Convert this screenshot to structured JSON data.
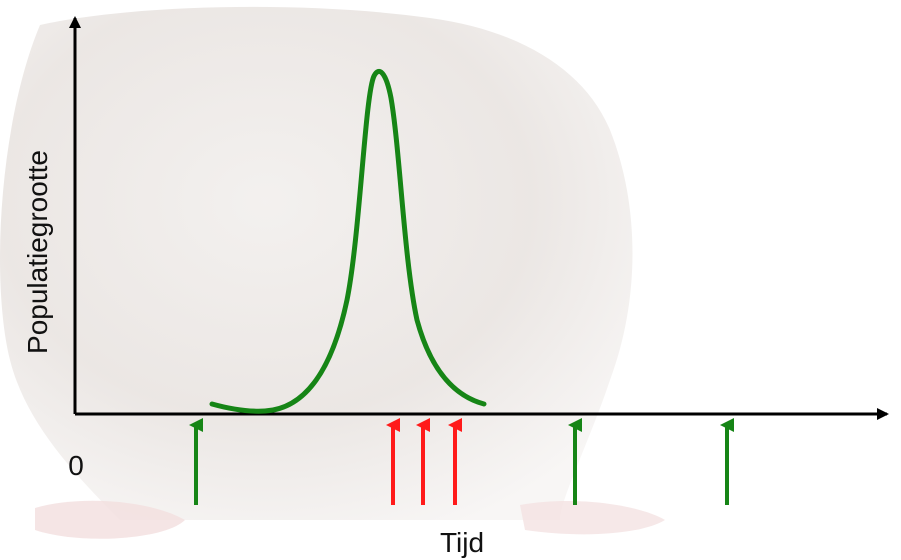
{
  "diagram": {
    "y_label": "Populatiegrootte",
    "x_label": "Tijd",
    "origin_label": "0"
  },
  "colors": {
    "axis": "#000000",
    "curve": "#168516",
    "arrow_green": "#168516",
    "arrow_red": "#ff1a1a",
    "background_art": "#dcd6d2"
  },
  "markers": {
    "green_count_left": 1,
    "red_count_middle": 3,
    "green_count_right": 2
  }
}
